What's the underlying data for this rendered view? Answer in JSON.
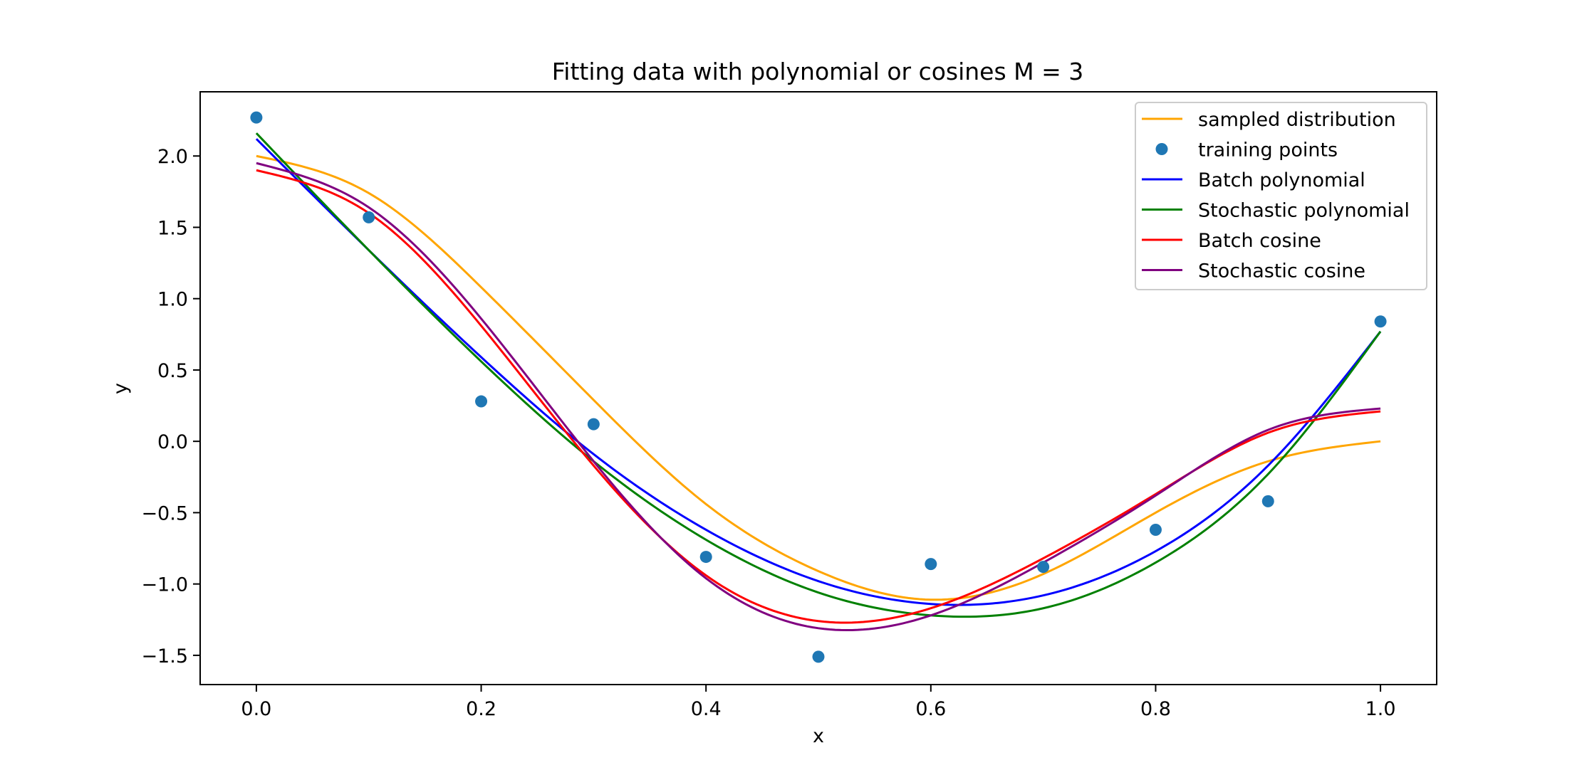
{
  "chart_data": {
    "type": "line",
    "title": "Fitting data with polynomial or cosines M = 3",
    "xlabel": "x",
    "ylabel": "y",
    "xlim": [
      -0.05,
      1.05
    ],
    "ylim": [
      -1.705,
      2.45
    ],
    "x_ticks": [
      0.0,
      0.2,
      0.4,
      0.6,
      0.8,
      1.0
    ],
    "x_tick_labels": [
      "0.0",
      "0.2",
      "0.4",
      "0.6",
      "0.8",
      "1.0"
    ],
    "y_ticks": [
      -1.5,
      -1.0,
      -0.5,
      0.0,
      0.5,
      1.0,
      1.5,
      2.0
    ],
    "y_tick_labels": [
      "−1.5",
      "−1.0",
      "−0.5",
      "0.0",
      "0.5",
      "1.0",
      "1.5",
      "2.0"
    ],
    "grid": false,
    "legend_position": "top-right",
    "series": [
      {
        "name": "sampled distribution",
        "kind": "line",
        "color": "#ffa500",
        "x": [
          0.0,
          0.1,
          0.2,
          0.3,
          0.4,
          0.5,
          0.6,
          0.7,
          0.8,
          0.9,
          1.0
        ],
        "y": [
          2.0,
          1.74,
          1.08,
          0.29,
          -0.44,
          -0.91,
          -1.11,
          -0.93,
          -0.5,
          -0.14,
          0.0
        ]
      },
      {
        "name": "training points",
        "kind": "scatter",
        "color": "#1f77b4",
        "x": [
          0.0,
          0.1,
          0.2,
          0.3,
          0.4,
          0.5,
          0.6,
          0.7,
          0.8,
          0.9,
          1.0
        ],
        "y": [
          2.27,
          1.57,
          0.28,
          0.12,
          -0.81,
          -1.51,
          -0.86,
          -0.88,
          -0.62,
          -0.42,
          0.84
        ]
      },
      {
        "name": "Batch polynomial",
        "kind": "line",
        "color": "#0000ff",
        "x": [
          0.0,
          0.1,
          0.2,
          0.3,
          0.4,
          0.5,
          0.6,
          0.7,
          0.8,
          0.9,
          1.0
        ],
        "y": [
          2.12,
          1.34,
          0.59,
          -0.09,
          -0.62,
          -0.98,
          -1.14,
          -1.08,
          -0.77,
          -0.17,
          0.77
        ]
      },
      {
        "name": "Stochastic polynomial",
        "kind": "line",
        "color": "#008000",
        "x": [
          0.0,
          0.1,
          0.2,
          0.3,
          0.4,
          0.5,
          0.6,
          0.7,
          0.8,
          0.9,
          1.0
        ],
        "y": [
          2.16,
          1.34,
          0.56,
          -0.14,
          -0.69,
          -1.06,
          -1.22,
          -1.17,
          -0.85,
          -0.23,
          0.77
        ]
      },
      {
        "name": "Batch cosine",
        "kind": "line",
        "color": "#ff0000",
        "x": [
          0.0,
          0.1,
          0.2,
          0.3,
          0.4,
          0.5,
          0.6,
          0.7,
          0.8,
          0.9,
          1.0
        ],
        "y": [
          1.9,
          1.6,
          0.81,
          -0.17,
          -0.94,
          -1.26,
          -1.17,
          -0.82,
          -0.37,
          0.06,
          0.21
        ]
      },
      {
        "name": "Stochastic cosine",
        "kind": "line",
        "color": "#800080",
        "x": [
          0.0,
          0.1,
          0.2,
          0.3,
          0.4,
          0.5,
          0.6,
          0.7,
          0.8,
          0.9,
          1.0
        ],
        "y": [
          1.95,
          1.64,
          0.86,
          -0.14,
          -0.96,
          -1.31,
          -1.22,
          -0.85,
          -0.38,
          0.08,
          0.23
        ]
      }
    ]
  }
}
